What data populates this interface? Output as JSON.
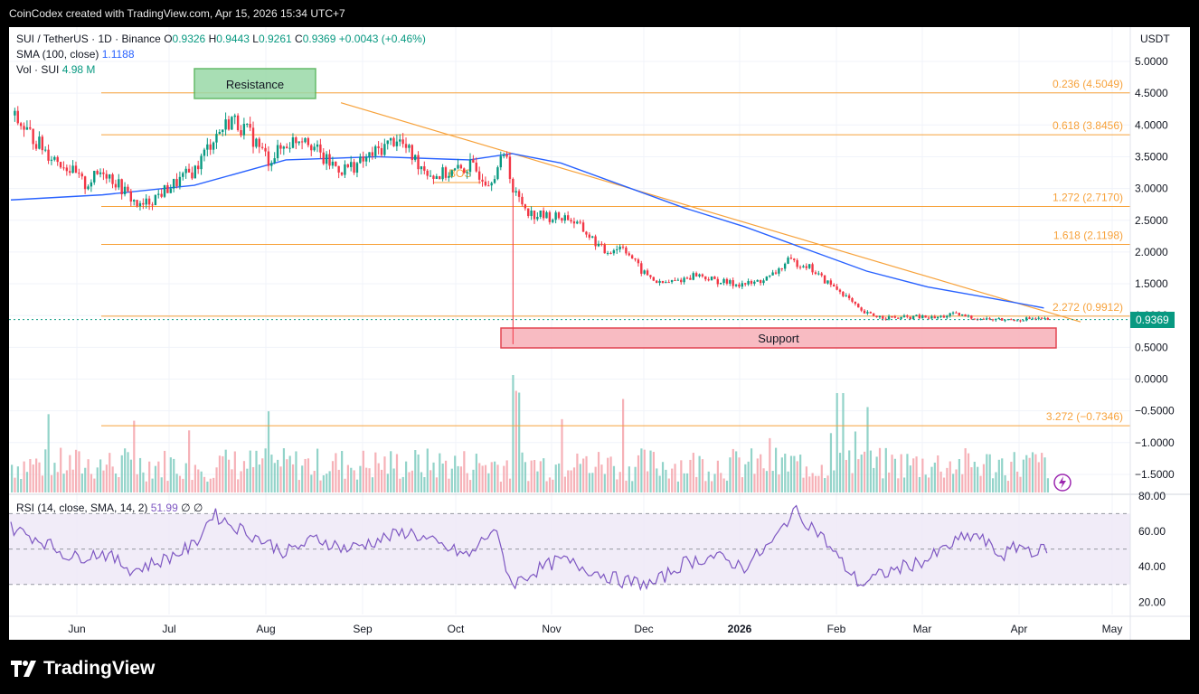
{
  "header": {
    "attribution": "CoinCodex created with TradingView.com, Apr 15, 2026 15:34 UTC+7"
  },
  "legend": {
    "symbol": "SUI / TetherUS · 1D · Binance",
    "o_label": "O",
    "o": "0.9326",
    "h_label": "H",
    "h": "0.9443",
    "l_label": "L",
    "l": "0.9261",
    "c_label": "C",
    "c": "0.9369",
    "change": "+0.0043 (+0.46%)",
    "sma_label": "SMA (100, close)",
    "sma_value": "1.1188",
    "vol_label": "Vol · SUI",
    "vol_value": "4.98 M",
    "rsi_label": "RSI (14, close, SMA, 14, 2)",
    "rsi_value": "51.99",
    "rsi_extra": "∅  ∅"
  },
  "price_scale": {
    "unit": "USDT",
    "ticks": [
      "5.0000",
      "4.5000",
      "4.0000",
      "3.5000",
      "3.0000",
      "2.5000",
      "2.0000",
      "1.5000",
      "1.0000",
      "0.5000",
      "0.0000",
      "−0.5000",
      "−1.0000",
      "−1.5000"
    ],
    "current_price": "0.9369"
  },
  "rsi_scale": {
    "ticks": [
      "80.00",
      "60.00",
      "40.00",
      "20.00"
    ]
  },
  "time_axis": {
    "labels": [
      "Jun",
      "Jul",
      "Aug",
      "Sep",
      "Oct",
      "Nov",
      "Dec",
      "2026",
      "Feb",
      "Mar",
      "Apr",
      "May"
    ]
  },
  "annotations": {
    "resistance": "Resistance",
    "support": "Support",
    "bos": "BOS"
  },
  "fib_levels": [
    {
      "label": "0.236 (4.5049)",
      "value": 4.5049
    },
    {
      "label": "0.618 (3.8456)",
      "value": 3.8456
    },
    {
      "label": "1.272 (2.7170)",
      "value": 2.717
    },
    {
      "label": "1.618 (2.1198)",
      "value": 2.1198
    },
    {
      "label": "2.272 (0.9912)",
      "value": 0.9912
    },
    {
      "label": "3.272 (−0.7346)",
      "value": -0.7346
    }
  ],
  "colors": {
    "up": "#089981",
    "down": "#f23645",
    "sma": "#2962ff",
    "fib": "#f7a23b",
    "rsi": "#7e57c2",
    "trendline": "#f7a23b"
  },
  "footer": {
    "brand": "TradingView"
  },
  "chart_data": {
    "type": "line",
    "x_label": "",
    "y_label": "USDT",
    "ylim": [
      -1.7,
      5.25
    ],
    "months": [
      "Jun",
      "Jul",
      "Aug",
      "Sep",
      "Oct",
      "Nov",
      "Dec",
      "2026",
      "Feb",
      "Mar",
      "Apr",
      "May"
    ],
    "series": [
      {
        "name": "SUI / TetherUS",
        "values": [
          [
            0,
            4.15
          ],
          [
            6,
            3.85
          ],
          [
            12,
            3.55
          ],
          [
            18,
            3.35
          ],
          [
            24,
            3.05
          ],
          [
            30,
            3.3
          ],
          [
            36,
            3.0
          ],
          [
            42,
            2.7
          ],
          [
            48,
            2.9
          ],
          [
            54,
            3.1
          ],
          [
            60,
            3.3
          ],
          [
            66,
            3.8
          ],
          [
            72,
            4.1
          ],
          [
            78,
            3.85
          ],
          [
            84,
            3.45
          ],
          [
            90,
            3.7
          ],
          [
            96,
            3.85
          ],
          [
            102,
            3.45
          ],
          [
            108,
            3.3
          ],
          [
            114,
            3.4
          ],
          [
            120,
            3.6
          ],
          [
            126,
            3.8
          ],
          [
            132,
            3.45
          ],
          [
            138,
            3.2
          ],
          [
            144,
            3.25
          ],
          [
            150,
            3.35
          ],
          [
            156,
            3.12
          ],
          [
            162,
            3.55
          ],
          [
            164,
            2.95
          ],
          [
            170,
            2.6
          ],
          [
            176,
            2.55
          ],
          [
            182,
            2.55
          ],
          [
            188,
            2.3
          ],
          [
            194,
            2.0
          ],
          [
            200,
            2.1
          ],
          [
            206,
            1.7
          ],
          [
            212,
            1.5
          ],
          [
            218,
            1.55
          ],
          [
            224,
            1.65
          ],
          [
            230,
            1.55
          ],
          [
            236,
            1.5
          ],
          [
            242,
            1.5
          ],
          [
            248,
            1.6
          ],
          [
            254,
            1.85
          ],
          [
            260,
            1.8
          ],
          [
            266,
            1.55
          ],
          [
            272,
            1.35
          ],
          [
            278,
            1.05
          ],
          [
            284,
            0.98
          ],
          [
            290,
            0.96
          ],
          [
            296,
            0.98
          ],
          [
            302,
            0.96
          ],
          [
            308,
            1.02
          ],
          [
            314,
            0.97
          ],
          [
            320,
            0.94
          ],
          [
            326,
            0.93
          ],
          [
            332,
            0.95
          ],
          [
            338,
            0.94
          ]
        ]
      },
      {
        "name": "SMA (100, close)",
        "values": [
          [
            0,
            2.82
          ],
          [
            30,
            2.9
          ],
          [
            60,
            3.05
          ],
          [
            90,
            3.45
          ],
          [
            120,
            3.5
          ],
          [
            150,
            3.45
          ],
          [
            164,
            3.55
          ],
          [
            180,
            3.4
          ],
          [
            200,
            3.05
          ],
          [
            220,
            2.7
          ],
          [
            240,
            2.4
          ],
          [
            260,
            2.05
          ],
          [
            280,
            1.7
          ],
          [
            300,
            1.45
          ],
          [
            320,
            1.28
          ],
          [
            338,
            1.12
          ]
        ]
      }
    ],
    "rsi": {
      "name": "RSI (14, close, SMA, 14, 2)",
      "upper": 70,
      "middle": 50,
      "lower": 30,
      "values": [
        [
          0,
          62
        ],
        [
          10,
          55
        ],
        [
          20,
          45
        ],
        [
          30,
          48
        ],
        [
          40,
          38
        ],
        [
          50,
          44
        ],
        [
          60,
          52
        ],
        [
          66,
          70
        ],
        [
          72,
          64
        ],
        [
          80,
          57
        ],
        [
          90,
          48
        ],
        [
          100,
          56
        ],
        [
          110,
          50
        ],
        [
          120,
          55
        ],
        [
          130,
          60
        ],
        [
          140,
          52
        ],
        [
          150,
          46
        ],
        [
          158,
          62
        ],
        [
          164,
          30
        ],
        [
          172,
          38
        ],
        [
          180,
          44
        ],
        [
          190,
          38
        ],
        [
          200,
          32
        ],
        [
          210,
          30
        ],
        [
          220,
          42
        ],
        [
          230,
          46
        ],
        [
          240,
          40
        ],
        [
          250,
          55
        ],
        [
          256,
          72
        ],
        [
          264,
          60
        ],
        [
          272,
          42
        ],
        [
          278,
          30
        ],
        [
          284,
          35
        ],
        [
          292,
          40
        ],
        [
          300,
          44
        ],
        [
          310,
          55
        ],
        [
          316,
          58
        ],
        [
          324,
          46
        ],
        [
          330,
          52
        ],
        [
          336,
          48
        ],
        [
          340,
          52
        ]
      ]
    }
  }
}
